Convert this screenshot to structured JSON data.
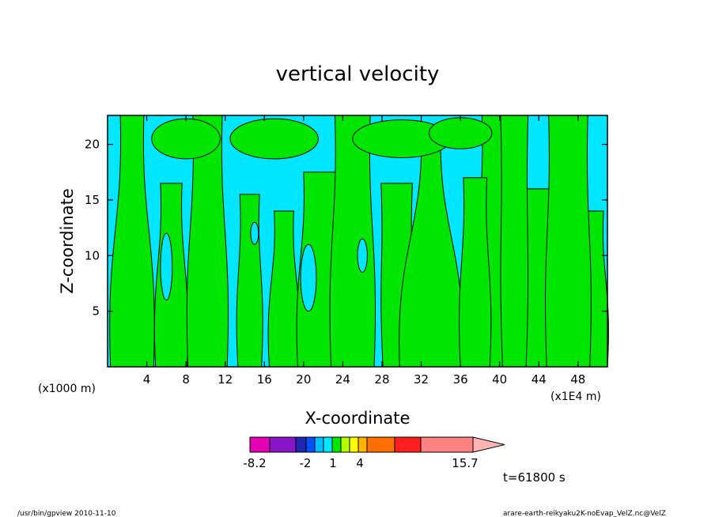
{
  "chart_data": {
    "type": "heatmap",
    "title": "vertical velocity",
    "xlabel": "X-coordinate",
    "ylabel": "Z-coordinate",
    "x_unit": "(x1000 m)",
    "x_unit2": "(x1E4 m)",
    "xlim": [
      0,
      51
    ],
    "ylim": [
      0,
      22.6
    ],
    "x_ticks": [
      "4",
      "8",
      "12",
      "16",
      "20",
      "24",
      "28",
      "32",
      "36",
      "40",
      "44",
      "48"
    ],
    "y_ticks": [
      "5",
      "10",
      "15",
      "20"
    ],
    "colorbar": {
      "labels": [
        "-8.2",
        "-2",
        "1",
        "4",
        "15.7"
      ],
      "colors": [
        "#e600b4",
        "#8a14c8",
        "#1e28b4",
        "#0050ff",
        "#00beff",
        "#00e6ff",
        "#00e600",
        "#b4ff00",
        "#ffff00",
        "#ffb400",
        "#ff6e00",
        "#ff1e1e",
        "#ff8282",
        "#ffb4b4"
      ]
    },
    "fields": {
      "negative_color": "#00e6ff",
      "positive_color": "#00e600"
    },
    "time_label": "t=61800 s"
  },
  "footer": {
    "left": "/usr/bin/gpview  2010-11-10",
    "right": "arare-earth-reikyaku2K-noEvap_VelZ.nc@VelZ"
  }
}
